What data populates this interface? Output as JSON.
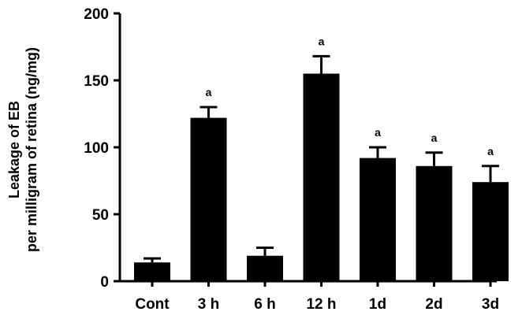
{
  "chart_data": {
    "type": "bar",
    "categories": [
      "Cont",
      "3 h",
      "6 h",
      "12 h",
      "1d",
      "2d",
      "3d"
    ],
    "values": [
      14,
      122,
      19,
      155,
      92,
      86,
      74
    ],
    "errors": [
      3,
      8,
      6,
      13,
      8,
      10,
      12
    ],
    "annotations": [
      "",
      "a",
      "",
      "a",
      "a",
      "a",
      "a"
    ],
    "ylabel_line1": "Leakage of EB",
    "ylabel_line2": "per milligram of retina (ng/mg)",
    "ylim": [
      0,
      200
    ],
    "yticks": [
      "0",
      "50",
      "100",
      "150",
      "200"
    ],
    "bar_color": "#000000",
    "grid": false,
    "legend": "none"
  }
}
